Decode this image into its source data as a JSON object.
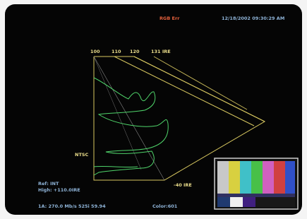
{
  "header": {
    "status": "RGB Err",
    "timestamp": "12/18/2002 09:30:29 AM"
  },
  "scale": {
    "top_labels": [
      "100",
      "110",
      "120",
      "131 IRE"
    ],
    "bottom_label": "-40 IRE",
    "standard": "NTSC"
  },
  "footer": {
    "reference": "Ref: INT",
    "high": "High: +110.0IRE",
    "input": "1A: 270.0 Mb/s  525i 59.94",
    "color": "Color:601"
  }
}
